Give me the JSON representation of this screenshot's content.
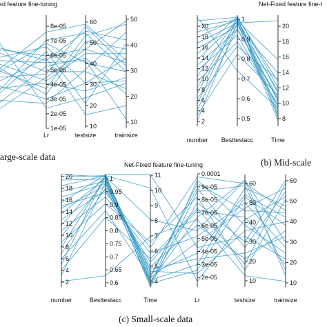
{
  "figure": {
    "line_color": "#3a9ac9",
    "captions": [
      "arge-scale data",
      "(b) Mid-scale",
      "(c) Small-scale data"
    ]
  },
  "chart_data": [
    {
      "type": "parallel_coordinates",
      "title": "ed feature fine-tuning",
      "axes": [
        {
          "label": "me",
          "ticks": []
        },
        {
          "label": "Lr",
          "ticks": [
            "8e-05",
            "7e-05",
            "6e-05",
            "5e-05",
            "4e-05",
            "3e-05",
            "2e-05",
            "1e-05"
          ]
        },
        {
          "label": "testsize",
          "ticks": [
            "60",
            "50",
            "40",
            "30",
            "20",
            "10"
          ]
        },
        {
          "label": "trainsize",
          "ticks": [
            "50",
            "40",
            "30",
            "20",
            "10"
          ]
        }
      ],
      "range": [
        0,
        1
      ],
      "lines": [
        [
          0.5,
          0.85,
          0.92,
          0.6
        ],
        [
          0.3,
          0.78,
          0.84,
          0.5
        ],
        [
          0.7,
          0.64,
          0.7,
          0.95
        ],
        [
          0.2,
          0.55,
          0.62,
          0.3
        ],
        [
          0.45,
          0.48,
          0.9,
          0.55
        ],
        [
          0.62,
          0.72,
          0.4,
          0.62
        ],
        [
          0.35,
          0.4,
          0.33,
          0.45
        ],
        [
          0.55,
          0.3,
          0.77,
          0.7
        ],
        [
          0.25,
          0.22,
          0.52,
          0.85
        ],
        [
          0.8,
          0.18,
          0.27,
          0.4
        ],
        [
          0.4,
          0.62,
          0.12,
          0.2
        ],
        [
          0.6,
          0.58,
          0.6,
          0.08
        ],
        [
          0.15,
          0.45,
          0.7,
          0.58
        ],
        [
          0.52,
          0.35,
          0.82,
          0.92
        ],
        [
          0.68,
          0.5,
          0.5,
          0.35
        ],
        [
          0.28,
          0.68,
          0.22,
          0.75
        ],
        [
          0.48,
          0.75,
          0.58,
          0.5
        ],
        [
          0.58,
          0.42,
          0.66,
          0.66
        ],
        [
          0.38,
          0.26,
          0.4,
          0.42
        ],
        [
          0.72,
          0.6,
          0.86,
          0.78
        ]
      ]
    },
    {
      "type": "parallel_coordinates",
      "title": "Net-Fixed feature fine-t",
      "axes": [
        {
          "label": "number",
          "ticks": [
            "20",
            "18",
            "16",
            "14",
            "12",
            "10",
            "8",
            "6",
            "4",
            "2"
          ]
        },
        {
          "label": "Besttestacc",
          "ticks": [
            "1",
            "0.9",
            "0.8",
            "0.7",
            "0.6",
            "0.5"
          ]
        },
        {
          "label": "Time",
          "ticks": [
            "20",
            "18",
            "16",
            "14",
            "12",
            "10",
            "8"
          ]
        }
      ],
      "range": [
        0,
        1
      ],
      "lines": [
        [
          0.95,
          0.98,
          0.4
        ],
        [
          0.9,
          0.96,
          0.3
        ],
        [
          0.85,
          0.95,
          0.22
        ],
        [
          0.8,
          0.97,
          0.15
        ],
        [
          0.75,
          0.93,
          0.1
        ],
        [
          0.7,
          0.9,
          0.48
        ],
        [
          0.65,
          0.99,
          0.35
        ],
        [
          0.6,
          0.94,
          0.05
        ],
        [
          0.55,
          0.87,
          0.26
        ],
        [
          0.5,
          0.82,
          0.18
        ],
        [
          0.45,
          0.97,
          0.12
        ],
        [
          0.4,
          0.76,
          0.2
        ],
        [
          0.35,
          0.95,
          0.6
        ],
        [
          0.3,
          0.92,
          0.32
        ],
        [
          0.25,
          0.72,
          0.42
        ],
        [
          0.2,
          0.98,
          0.08
        ],
        [
          0.15,
          0.88,
          0.24
        ],
        [
          0.1,
          0.65,
          0.28
        ],
        [
          0.05,
          0.93,
          0.95
        ],
        [
          0.98,
          0.5,
          0.16
        ]
      ]
    },
    {
      "type": "parallel_coordinates",
      "title": "Net-Fixed feature fine-tuning",
      "axes": [
        {
          "label": "number",
          "ticks": [
            "20",
            "18",
            "16",
            "14",
            "12",
            "10",
            "8",
            "6",
            "4",
            "2"
          ]
        },
        {
          "label": "Besttestacc",
          "ticks": [
            "1",
            "0.95",
            "0.9",
            "0.85",
            "0.8",
            "0.75",
            "0.7",
            "0.65",
            "0.6"
          ]
        },
        {
          "label": "Time",
          "ticks": [
            "11",
            "10",
            "9",
            "8",
            "7",
            "6",
            "5",
            "4"
          ]
        },
        {
          "label": "Lr",
          "ticks": [
            "0.0001",
            "9e-05",
            "8e-05",
            "7e-05",
            "6e-05",
            "5e-05",
            "4e-05",
            "3e-05",
            "2e-05"
          ]
        },
        {
          "label": "testsize",
          "ticks": [
            "60",
            "50",
            "40",
            "30",
            "20",
            "10"
          ]
        },
        {
          "label": "trainsize",
          "ticks": [
            "60",
            "50",
            "40",
            "30",
            "20",
            "10"
          ]
        }
      ],
      "range": [
        0,
        1
      ],
      "lines": [
        [
          1.0,
          0.98,
          0.05,
          0.62,
          0.95,
          0.4
        ],
        [
          0.95,
          0.96,
          0.0,
          0.85,
          0.9,
          0.15
        ],
        [
          0.9,
          0.99,
          0.08,
          0.4,
          0.7,
          0.88
        ],
        [
          0.85,
          0.94,
          0.02,
          0.95,
          0.55,
          0.3
        ],
        [
          0.8,
          0.92,
          0.12,
          0.3,
          0.82,
          0.62
        ],
        [
          0.75,
          1.0,
          0.04,
          0.75,
          0.4,
          0.95
        ],
        [
          0.7,
          0.9,
          0.18,
          0.55,
          0.25,
          0.5
        ],
        [
          0.65,
          0.97,
          0.06,
          0.2,
          0.88,
          0.72
        ],
        [
          0.6,
          0.86,
          0.22,
          0.68,
          0.62,
          0.2
        ],
        [
          0.55,
          0.99,
          0.1,
          0.88,
          0.35,
          0.85
        ],
        [
          0.5,
          0.8,
          0.3,
          0.45,
          0.75,
          0.35
        ],
        [
          0.45,
          0.95,
          0.14,
          0.12,
          0.5,
          0.58
        ],
        [
          0.4,
          0.74,
          0.4,
          0.8,
          0.15,
          0.78
        ],
        [
          0.35,
          0.98,
          0.6,
          0.5,
          0.95,
          0.1
        ],
        [
          0.3,
          0.88,
          0.16,
          0.25,
          0.3,
          0.45
        ],
        [
          0.25,
          0.68,
          0.08,
          0.92,
          0.68,
          0.66
        ],
        [
          0.2,
          1.0,
          1.0,
          0.35,
          0.45,
          0.25
        ],
        [
          0.15,
          0.62,
          0.25,
          0.7,
          0.2,
          0.92
        ],
        [
          0.1,
          0.93,
          0.03,
          0.15,
          0.8,
          0.55
        ],
        [
          0.05,
          0.1,
          0.45,
          0.6,
          0.1,
          0.05
        ],
        [
          0.98,
          0.99,
          0.88,
          0.05,
          0.6,
          0.8
        ],
        [
          0.72,
          0.84,
          0.35,
          0.98,
          0.92,
          0.68
        ]
      ]
    }
  ]
}
